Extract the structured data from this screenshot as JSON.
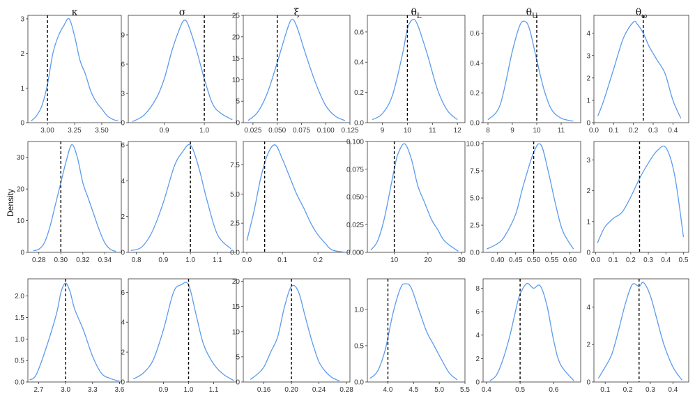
{
  "figure": {
    "ylabel": "Density",
    "line_color": "#5b9bef",
    "ref_line_color": "#000000",
    "column_titles": [
      {
        "main": "κ",
        "sub": ""
      },
      {
        "main": "σ",
        "sub": ""
      },
      {
        "main": "ξ",
        "sub": ""
      },
      {
        "main": "θ",
        "sub": "L"
      },
      {
        "main": "θ",
        "sub": "U"
      },
      {
        "main": "θ",
        "sub": "ω"
      }
    ]
  },
  "chart_data": [
    {
      "type": "line",
      "panel": "row1-kappa",
      "xlim": [
        2.82,
        3.68
      ],
      "ylim": [
        0,
        3.1
      ],
      "xticks": [
        3.0,
        3.25,
        3.5
      ],
      "xtick_labels": [
        "3.00",
        "3.25",
        "3.50"
      ],
      "yticks": [
        0,
        1,
        2,
        3
      ],
      "ytick_labels": [
        "0",
        "1",
        "2",
        "3"
      ],
      "ref_x": 3.0,
      "x": [
        2.85,
        2.9,
        2.95,
        3.0,
        3.05,
        3.1,
        3.15,
        3.2,
        3.25,
        3.3,
        3.35,
        3.4,
        3.45,
        3.5,
        3.55,
        3.6,
        3.65
      ],
      "y": [
        0.05,
        0.2,
        0.5,
        1.1,
        2.0,
        2.5,
        2.8,
        3.0,
        2.5,
        1.8,
        1.4,
        0.9,
        0.6,
        0.4,
        0.2,
        0.1,
        0.05
      ]
    },
    {
      "type": "line",
      "panel": "row1-sigma",
      "xlim": [
        0.81,
        1.08
      ],
      "ylim": [
        0,
        11
      ],
      "xticks": [
        0.9,
        1.0
      ],
      "xtick_labels": [
        "0.9",
        "1.0"
      ],
      "yticks": [
        0,
        3,
        6,
        9
      ],
      "ytick_labels": [
        "0",
        "3",
        "6",
        "9"
      ],
      "ref_x": 1.0,
      "x": [
        0.82,
        0.85,
        0.88,
        0.9,
        0.92,
        0.94,
        0.95,
        0.96,
        0.98,
        1.0,
        1.02,
        1.04,
        1.07
      ],
      "y": [
        0.1,
        0.8,
        2.5,
        4.5,
        7.5,
        9.8,
        10.5,
        10.0,
        7.5,
        4.5,
        2.0,
        1.0,
        0.3
      ]
    },
    {
      "type": "line",
      "panel": "row1-xi",
      "xlim": [
        0.015,
        0.125
      ],
      "ylim": [
        0,
        25
      ],
      "xticks": [
        0.025,
        0.05,
        0.075,
        0.1,
        0.125
      ],
      "xtick_labels": [
        "0.025",
        "0.050",
        "0.075",
        "0.100",
        "0.125"
      ],
      "yticks": [
        0,
        5,
        10,
        15,
        20,
        25
      ],
      "ytick_labels": [
        "0",
        "5",
        "10",
        "15",
        "20",
        "25"
      ],
      "ref_x": 0.05,
      "x": [
        0.02,
        0.03,
        0.04,
        0.05,
        0.06,
        0.065,
        0.07,
        0.08,
        0.09,
        0.1,
        0.11,
        0.12
      ],
      "y": [
        0.5,
        2.5,
        7.0,
        14.0,
        21.5,
        24.0,
        22.5,
        15.5,
        9.0,
        4.0,
        1.5,
        0.5
      ]
    },
    {
      "type": "line",
      "panel": "row1-thetaL",
      "xlim": [
        8.4,
        12.3
      ],
      "ylim": [
        0,
        0.71
      ],
      "xticks": [
        9,
        10,
        11,
        12
      ],
      "xtick_labels": [
        "9",
        "10",
        "11",
        "12"
      ],
      "yticks": [
        0,
        0.2,
        0.4,
        0.6
      ],
      "ytick_labels": [
        "0.0",
        "0.2",
        "0.4",
        "0.6"
      ],
      "ref_x": 10.0,
      "x": [
        8.6,
        9.0,
        9.4,
        9.8,
        10.0,
        10.2,
        10.4,
        10.8,
        11.2,
        11.6,
        12.0
      ],
      "y": [
        0.02,
        0.06,
        0.18,
        0.45,
        0.62,
        0.68,
        0.65,
        0.45,
        0.22,
        0.08,
        0.02
      ]
    },
    {
      "type": "line",
      "panel": "row1-thetaU",
      "xlim": [
        7.8,
        11.8
      ],
      "ylim": [
        0,
        0.72
      ],
      "xticks": [
        8,
        9,
        10,
        11
      ],
      "xtick_labels": [
        "8",
        "9",
        "10",
        "11"
      ],
      "yticks": [
        0,
        0.2,
        0.4,
        0.6
      ],
      "ytick_labels": [
        "0.0",
        "0.2",
        "0.4",
        "0.6"
      ],
      "ref_x": 10.0,
      "x": [
        8.0,
        8.5,
        9.0,
        9.3,
        9.5,
        9.7,
        10.0,
        10.3,
        10.6,
        11.0,
        11.5
      ],
      "y": [
        0.02,
        0.12,
        0.48,
        0.65,
        0.68,
        0.63,
        0.42,
        0.22,
        0.09,
        0.03,
        0.01
      ]
    },
    {
      "type": "line",
      "panel": "row1-thetaW",
      "xlim": [
        0.0,
        0.48
      ],
      "ylim": [
        0,
        4.8
      ],
      "xticks": [
        0,
        0.1,
        0.2,
        0.3,
        0.4
      ],
      "xtick_labels": [
        "0.0",
        "0.1",
        "0.2",
        "0.3",
        "0.4"
      ],
      "yticks": [
        0,
        1,
        2,
        3,
        4
      ],
      "ytick_labels": [
        "0",
        "1",
        "2",
        "3",
        "4"
      ],
      "ref_x": 0.25,
      "x": [
        0.02,
        0.05,
        0.1,
        0.15,
        0.2,
        0.22,
        0.25,
        0.28,
        0.32,
        0.36,
        0.4,
        0.44
      ],
      "y": [
        0.3,
        1.0,
        2.4,
        3.8,
        4.5,
        4.4,
        4.0,
        3.4,
        2.8,
        2.2,
        1.0,
        0.2
      ]
    },
    {
      "type": "line",
      "panel": "row2-kappa",
      "xlim": [
        0.27,
        0.355
      ],
      "ylim": [
        0,
        35
      ],
      "xticks": [
        0.28,
        0.3,
        0.32,
        0.34
      ],
      "xtick_labels": [
        "0.28",
        "0.30",
        "0.32",
        "0.34"
      ],
      "yticks": [
        0,
        10,
        20,
        30
      ],
      "ytick_labels": [
        "0",
        "10",
        "20",
        "30"
      ],
      "ref_x": 0.3,
      "x": [
        0.275,
        0.28,
        0.285,
        0.29,
        0.295,
        0.3,
        0.305,
        0.31,
        0.315,
        0.32,
        0.325,
        0.33,
        0.335,
        0.34,
        0.345,
        0.35
      ],
      "y": [
        0.5,
        1.0,
        3.0,
        8.0,
        15.0,
        22.0,
        29.0,
        34.0,
        30.0,
        22.0,
        17.0,
        12.0,
        7.0,
        3.0,
        1.0,
        0.3
      ]
    },
    {
      "type": "line",
      "panel": "row2-sigma",
      "xlim": [
        0.77,
        1.17
      ],
      "ylim": [
        0,
        6.2
      ],
      "xticks": [
        0.8,
        0.9,
        1.0,
        1.1
      ],
      "xtick_labels": [
        "0.8",
        "0.9",
        "1.0",
        "1.1"
      ],
      "yticks": [
        0,
        2,
        4,
        6
      ],
      "ytick_labels": [
        "0",
        "2",
        "4",
        "6"
      ],
      "ref_x": 1.0,
      "x": [
        0.78,
        0.82,
        0.86,
        0.9,
        0.94,
        0.97,
        1.0,
        1.03,
        1.06,
        1.1,
        1.15
      ],
      "y": [
        0.1,
        0.3,
        1.2,
        2.8,
        4.8,
        5.6,
        6.0,
        4.8,
        3.0,
        1.0,
        0.2
      ]
    },
    {
      "type": "line",
      "panel": "row2-xi",
      "xlim": [
        -0.01,
        0.29
      ],
      "ylim": [
        0,
        9.5
      ],
      "xticks": [
        0.0,
        0.1,
        0.2
      ],
      "xtick_labels": [
        "0.0",
        "0.1",
        "0.2"
      ],
      "yticks": [
        0,
        2.5,
        5,
        7.5
      ],
      "ytick_labels": [
        "0.0",
        "2.5",
        "5.0",
        "7.5"
      ],
      "ref_x": 0.05,
      "x": [
        0.0,
        0.02,
        0.04,
        0.06,
        0.08,
        0.1,
        0.12,
        0.14,
        0.16,
        0.18,
        0.2,
        0.22,
        0.24,
        0.28
      ],
      "y": [
        1.0,
        3.5,
        6.5,
        8.5,
        9.2,
        8.0,
        6.5,
        5.0,
        3.8,
        2.5,
        1.5,
        0.8,
        0.2,
        0.0
      ]
    },
    {
      "type": "line",
      "panel": "row2-thetaL",
      "xlim": [
        2,
        31
      ],
      "ylim": [
        0,
        0.1
      ],
      "xticks": [
        10,
        20,
        30
      ],
      "xtick_labels": [
        "10",
        "20",
        "30"
      ],
      "yticks": [
        0,
        0.025,
        0.05,
        0.075,
        0.1
      ],
      "ytick_labels": [
        "0.000",
        "0.025",
        "0.050",
        "0.075",
        "0.100"
      ],
      "ref_x": 10,
      "x": [
        3,
        5,
        7,
        9,
        10,
        11,
        13,
        15,
        17,
        19,
        21,
        23,
        25,
        29
      ],
      "y": [
        0.002,
        0.01,
        0.03,
        0.06,
        0.075,
        0.088,
        0.098,
        0.085,
        0.06,
        0.045,
        0.03,
        0.02,
        0.01,
        0.001
      ]
    },
    {
      "type": "line",
      "panel": "row2-thetaU",
      "xlim": [
        0.36,
        0.63
      ],
      "ylim": [
        0,
        10.2
      ],
      "xticks": [
        0.4,
        0.45,
        0.5,
        0.55,
        0.6
      ],
      "xtick_labels": [
        "0.40",
        "0.45",
        "0.50",
        "0.55",
        "0.60"
      ],
      "yticks": [
        0,
        2.5,
        5,
        7.5,
        10
      ],
      "ytick_labels": [
        "0.0",
        "2.5",
        "5.0",
        "7.5",
        "10.0"
      ],
      "ref_x": 0.5,
      "x": [
        0.37,
        0.4,
        0.42,
        0.45,
        0.47,
        0.5,
        0.52,
        0.54,
        0.56,
        0.58,
        0.61
      ],
      "y": [
        0.3,
        0.8,
        1.5,
        3.5,
        6.0,
        9.2,
        9.9,
        7.5,
        4.5,
        2.0,
        0.3
      ]
    },
    {
      "type": "line",
      "panel": "row2-thetaW",
      "xlim": [
        -0.01,
        0.53
      ],
      "ylim": [
        0,
        3.6
      ],
      "xticks": [
        0.0,
        0.1,
        0.2,
        0.3,
        0.4,
        0.5
      ],
      "xtick_labels": [
        "0.0",
        "0.1",
        "0.2",
        "0.3",
        "0.4",
        "0.5"
      ],
      "yticks": [
        0,
        1,
        2,
        3
      ],
      "ytick_labels": [
        "0",
        "1",
        "2",
        "3"
      ],
      "ref_x": 0.25,
      "x": [
        0.01,
        0.05,
        0.1,
        0.15,
        0.2,
        0.25,
        0.3,
        0.35,
        0.4,
        0.45,
        0.5
      ],
      "y": [
        0.3,
        0.8,
        1.1,
        1.3,
        1.8,
        2.4,
        2.9,
        3.3,
        3.4,
        2.5,
        0.5
      ]
    },
    {
      "type": "line",
      "panel": "row3-kappa",
      "xlim": [
        2.58,
        3.62
      ],
      "ylim": [
        0,
        2.4
      ],
      "xticks": [
        2.7,
        3.0,
        3.3,
        3.6
      ],
      "xtick_labels": [
        "2.7",
        "3.0",
        "3.3",
        "3.6"
      ],
      "yticks": [
        0,
        0.5,
        1,
        1.5,
        2
      ],
      "ytick_labels": [
        "0.0",
        "0.5",
        "1.0",
        "1.5",
        "2.0"
      ],
      "ref_x": 3.0,
      "x": [
        2.6,
        2.65,
        2.7,
        2.8,
        2.9,
        2.95,
        3.0,
        3.05,
        3.1,
        3.2,
        3.3,
        3.4,
        3.5,
        3.6
      ],
      "y": [
        0.05,
        0.1,
        0.3,
        0.9,
        1.6,
        2.1,
        2.3,
        2.1,
        1.7,
        1.2,
        0.6,
        0.2,
        0.08,
        0.02
      ]
    },
    {
      "type": "line",
      "panel": "row3-sigma",
      "xlim": [
        0.76,
        1.19
      ],
      "ylim": [
        0,
        6.9
      ],
      "xticks": [
        0.9,
        1.0,
        1.1
      ],
      "xtick_labels": [
        "0.9",
        "1.0",
        "1.1"
      ],
      "yticks": [
        0,
        2,
        4,
        6
      ],
      "ytick_labels": [
        "0",
        "2",
        "4",
        "6"
      ],
      "ref_x": 1.0,
      "x": [
        0.78,
        0.82,
        0.86,
        0.9,
        0.94,
        0.97,
        1.0,
        1.03,
        1.06,
        1.1,
        1.14,
        1.18
      ],
      "y": [
        0.2,
        0.6,
        1.5,
        3.5,
        6.0,
        6.5,
        6.5,
        4.5,
        2.5,
        1.2,
        0.5,
        0.1
      ]
    },
    {
      "type": "line",
      "panel": "row3-xi",
      "xlim": [
        0.13,
        0.285
      ],
      "ylim": [
        0,
        20.5
      ],
      "xticks": [
        0.16,
        0.2,
        0.24,
        0.28
      ],
      "xtick_labels": [
        "0.16",
        "0.20",
        "0.24",
        "0.28"
      ],
      "yticks": [
        0,
        5,
        10,
        15,
        20
      ],
      "ytick_labels": [
        "0",
        "5",
        "10",
        "15",
        "20"
      ],
      "ref_x": 0.2,
      "x": [
        0.14,
        0.15,
        0.16,
        0.17,
        0.18,
        0.19,
        0.2,
        0.21,
        0.22,
        0.23,
        0.24,
        0.25,
        0.26,
        0.27
      ],
      "y": [
        0.5,
        1.5,
        3.0,
        6.0,
        9.0,
        15.0,
        19.0,
        18.0,
        13.0,
        8.0,
        4.0,
        2.0,
        0.8,
        0.2
      ]
    },
    {
      "type": "line",
      "panel": "row3-thetaL",
      "xlim": [
        3.6,
        5.5
      ],
      "ylim": [
        0,
        1.42
      ],
      "xticks": [
        4.0,
        4.5,
        5.0,
        5.5
      ],
      "xtick_labels": [
        "4.0",
        "4.5",
        "5.0",
        "5.5"
      ],
      "yticks": [
        0,
        0.5,
        1.0
      ],
      "ytick_labels": [
        "0.0",
        "0.5",
        "1.0"
      ],
      "ref_x": 4.0,
      "x": [
        3.65,
        3.8,
        3.95,
        4.1,
        4.25,
        4.35,
        4.45,
        4.6,
        4.75,
        4.9,
        5.05,
        5.2,
        5.35
      ],
      "y": [
        0.05,
        0.15,
        0.45,
        0.95,
        1.3,
        1.35,
        1.3,
        1.0,
        0.7,
        0.5,
        0.3,
        0.12,
        0.03
      ]
    },
    {
      "type": "line",
      "panel": "row3-thetaU",
      "xlim": [
        0.39,
        0.68
      ],
      "ylim": [
        0,
        8.8
      ],
      "xticks": [
        0.4,
        0.5,
        0.6
      ],
      "xtick_labels": [
        "0.4",
        "0.5",
        "0.6"
      ],
      "yticks": [
        0,
        2,
        4,
        6,
        8
      ],
      "ytick_labels": [
        "0",
        "2",
        "4",
        "6",
        "8"
      ],
      "ref_x": 0.5,
      "x": [
        0.41,
        0.43,
        0.45,
        0.47,
        0.49,
        0.5,
        0.52,
        0.54,
        0.56,
        0.58,
        0.6,
        0.62,
        0.66
      ],
      "y": [
        0.1,
        0.6,
        2.0,
        4.0,
        6.5,
        7.5,
        8.4,
        8.0,
        8.2,
        6.5,
        3.5,
        1.5,
        0.1
      ]
    },
    {
      "type": "line",
      "panel": "row3-thetaW",
      "xlim": [
        0.05,
        0.47
      ],
      "ylim": [
        0,
        5.5
      ],
      "xticks": [
        0.1,
        0.2,
        0.3,
        0.4
      ],
      "xtick_labels": [
        "0.1",
        "0.2",
        "0.3",
        "0.4"
      ],
      "yticks": [
        0,
        2,
        4
      ],
      "ytick_labels": [
        "0",
        "2",
        "4"
      ],
      "ref_x": 0.25,
      "x": [
        0.07,
        0.1,
        0.13,
        0.16,
        0.19,
        0.22,
        0.25,
        0.27,
        0.3,
        0.33,
        0.36,
        0.4,
        0.44
      ],
      "y": [
        0.2,
        0.8,
        1.5,
        2.8,
        4.2,
        5.2,
        5.1,
        5.3,
        4.6,
        3.3,
        2.0,
        0.8,
        0.1
      ]
    }
  ]
}
